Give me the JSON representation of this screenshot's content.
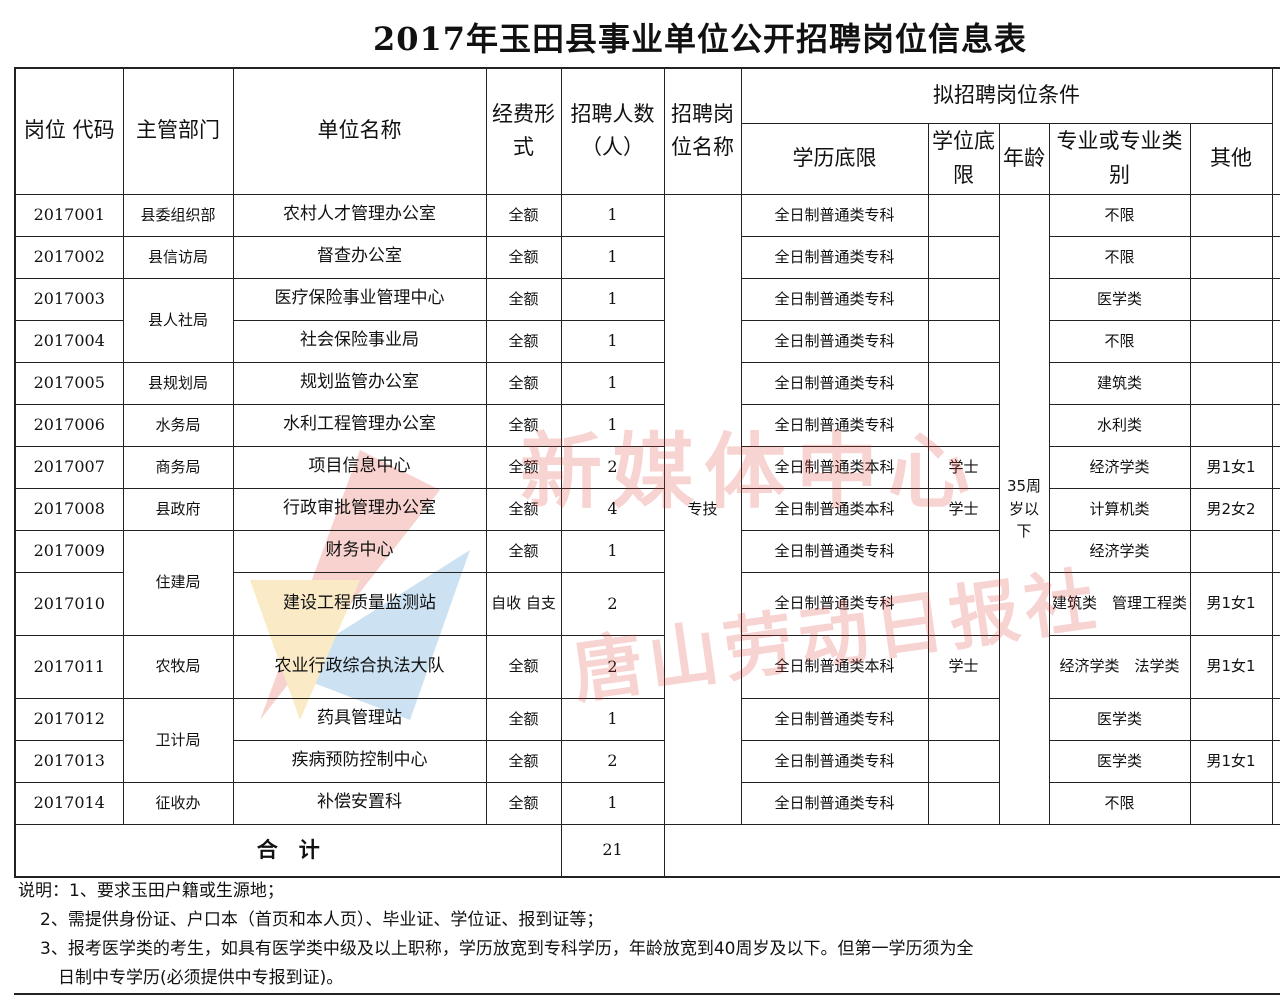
{
  "title": "2017年玉田县事业单位公开招聘岗位信息表",
  "headers": {
    "code": "岗位 代码",
    "dept": "主管部门",
    "unit": "单位名称",
    "fund": "经费形式",
    "count": "招聘人数（人）",
    "post": "招聘岗位名称",
    "conditions": "拟招聘岗位条件",
    "edu": "学历底限",
    "degree": "学位底限",
    "age": "年龄",
    "major": "专业或专业类别",
    "other": "其他"
  },
  "rows": [
    {
      "code": "2017001",
      "dept": "县委组织部",
      "unit": "农村人才管理办公室",
      "fund": "全额",
      "count": "1",
      "edu": "全日制普通类专科",
      "degree": "",
      "major": "不限",
      "other": ""
    },
    {
      "code": "2017002",
      "dept": "县信访局",
      "unit": "督查办公室",
      "fund": "全额",
      "count": "1",
      "edu": "全日制普通类专科",
      "degree": "",
      "major": "不限",
      "other": ""
    },
    {
      "code": "2017003",
      "dept": "县人社局",
      "unit": "医疗保险事业管理中心",
      "fund": "全额",
      "count": "1",
      "edu": "全日制普通类专科",
      "degree": "",
      "major": "医学类",
      "other": ""
    },
    {
      "code": "2017004",
      "dept": "县人社局",
      "unit": "社会保险事业局",
      "fund": "全额",
      "count": "1",
      "edu": "全日制普通类专科",
      "degree": "",
      "major": "不限",
      "other": ""
    },
    {
      "code": "2017005",
      "dept": "县规划局",
      "unit": "规划监管办公室",
      "fund": "全额",
      "count": "1",
      "edu": "全日制普通类专科",
      "degree": "",
      "major": "建筑类",
      "other": ""
    },
    {
      "code": "2017006",
      "dept": "水务局",
      "unit": "水利工程管理办公室",
      "fund": "全额",
      "count": "1",
      "edu": "全日制普通类专科",
      "degree": "",
      "major": "水利类",
      "other": ""
    },
    {
      "code": "2017007",
      "dept": "商务局",
      "unit": "项目信息中心",
      "fund": "全额",
      "count": "2",
      "edu": "全日制普通类本科",
      "degree": "学士",
      "major": "经济学类",
      "other": "男1女1"
    },
    {
      "code": "2017008",
      "dept": "县政府",
      "unit": "行政审批管理办公室",
      "fund": "全额",
      "count": "4",
      "edu": "全日制普通类本科",
      "degree": "学士",
      "major": "计算机类",
      "other": "男2女2"
    },
    {
      "code": "2017009",
      "dept": "住建局",
      "unit": "财务中心",
      "fund": "全额",
      "count": "1",
      "edu": "全日制普通类专科",
      "degree": "",
      "major": "经济学类",
      "other": ""
    },
    {
      "code": "2017010",
      "dept": "住建局",
      "unit": "建设工程质量监测站",
      "fund": "自收 自支",
      "count": "2",
      "edu": "全日制普通类专科",
      "degree": "",
      "major": "建筑类　管理工程类",
      "other": "男1女1"
    },
    {
      "code": "2017011",
      "dept": "农牧局",
      "unit": "农业行政综合执法大队",
      "fund": "全额",
      "count": "2",
      "edu": "全日制普通类本科",
      "degree": "学士",
      "major": "经济学类　法学类",
      "other": "男1女1"
    },
    {
      "code": "2017012",
      "dept": "卫计局",
      "unit": "药具管理站",
      "fund": "全额",
      "count": "1",
      "edu": "全日制普通类专科",
      "degree": "",
      "major": "医学类",
      "other": ""
    },
    {
      "code": "2017013",
      "dept": "卫计局",
      "unit": "疾病预防控制中心",
      "fund": "全额",
      "count": "2",
      "edu": "全日制普通类专科",
      "degree": "",
      "major": "医学类",
      "other": "男1女1"
    },
    {
      "code": "2017014",
      "dept": "征收办",
      "unit": "补偿安置科",
      "fund": "全额",
      "count": "1",
      "edu": "全日制普通类专科",
      "degree": "",
      "major": "不限",
      "other": ""
    }
  ],
  "post_name": "专技",
  "age_limit": "35周岁以下",
  "total": {
    "label": "合　计",
    "count": "21"
  },
  "notes": [
    "说明：1、要求玉田户籍或生源地；",
    "2、需提供身份证、户口本（首页和本人页）、毕业证、学位证、报到证等；",
    "3、报考医学类的考生，如具有医学类中级及以上职称，学历放宽到专科学历，年龄放宽到40周岁及以下。但第一学历须为全",
    "日制中专学历(必须提供中专报到证)。"
  ],
  "watermark": {
    "text1": "新媒体中心",
    "text2": "唐山劳动日报社"
  }
}
